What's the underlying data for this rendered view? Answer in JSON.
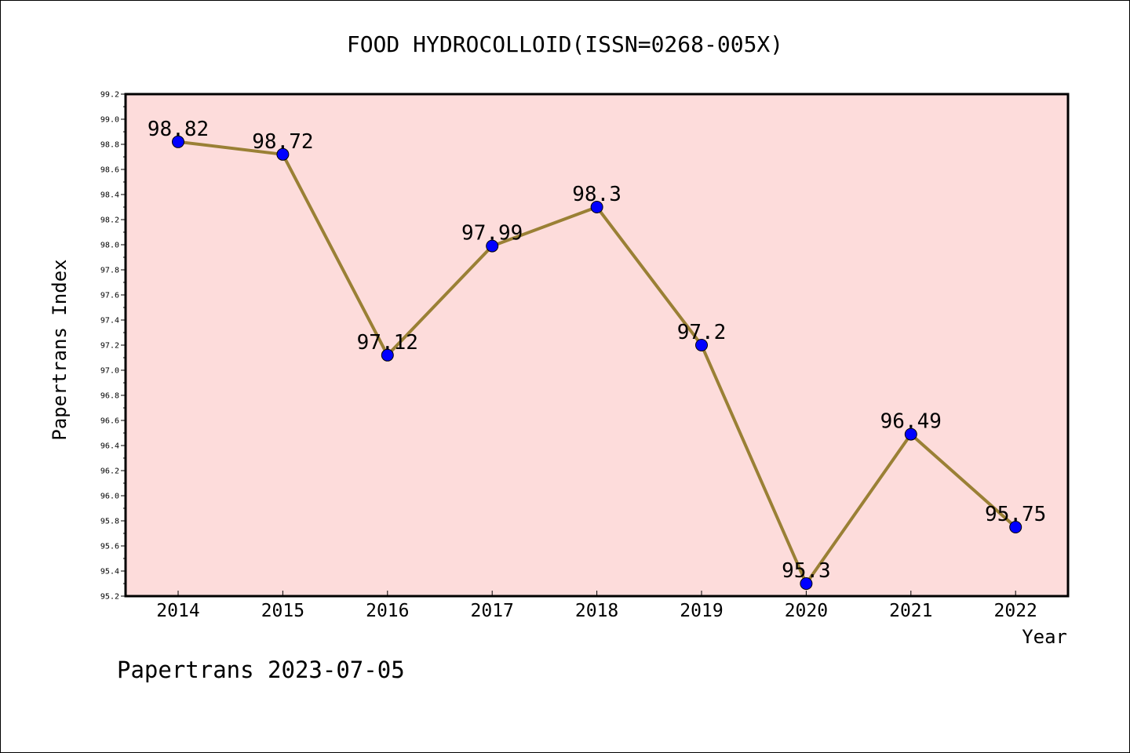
{
  "chart_data": {
    "type": "line",
    "title": "FOOD HYDROCOLLOID(ISSN=0268-005X)",
    "xlabel": "Year",
    "ylabel": "Papertrans Index",
    "footer": "Papertrans 2023-07-05",
    "categories": [
      "2014",
      "2015",
      "2016",
      "2017",
      "2018",
      "2019",
      "2020",
      "2021",
      "2022"
    ],
    "series": [
      {
        "values": [
          98.82,
          98.72,
          97.12,
          97.99,
          98.3,
          97.2,
          95.3,
          96.49,
          95.75
        ],
        "labels": [
          "98.82",
          "98.72",
          "97.12",
          "97.99",
          "98.3",
          "97.2",
          "95.3",
          "96.49",
          "95.75"
        ],
        "line_color": "#9a8035",
        "marker_color": "#0000ff"
      }
    ],
    "ylim": [
      95.2,
      99.2
    ],
    "yticks": [
      "95.2",
      "95.4",
      "95.6",
      "95.8",
      "96.0",
      "96.2",
      "96.4",
      "96.6",
      "96.8",
      "97.0",
      "97.2",
      "97.4",
      "97.6",
      "97.8",
      "98.0",
      "98.2",
      "98.4",
      "98.6",
      "98.8",
      "99.0",
      "99.2"
    ],
    "plot_background": "#fddcdb",
    "grid": false,
    "legend": "none"
  }
}
